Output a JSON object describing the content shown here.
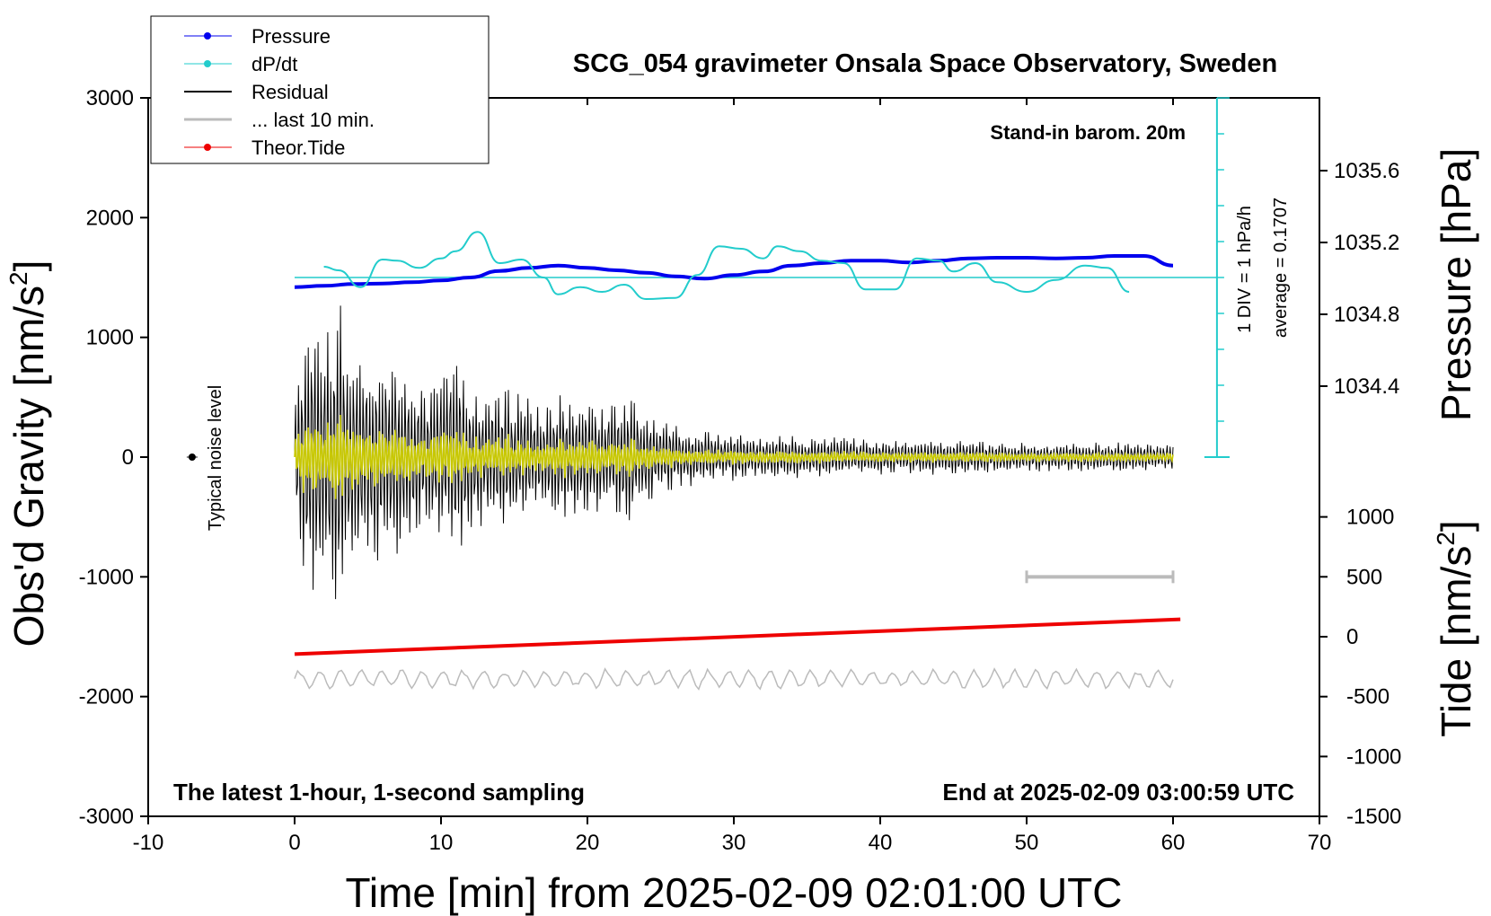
{
  "chart_data": {
    "type": "line",
    "title": "SCG_054 gravimeter Onsala Space Observatory, Sweden",
    "xlabel": "Time [min] from 2025-02-09 02:01:00 UTC",
    "ylabel_left": "Obs'd Gravity [nm/s",
    "ylabel_left_sup": "2",
    "ylabel_left_end": "]",
    "ylabel_right_top": "Pressure [hPa]",
    "ylabel_right_bottom": "Tide [nm/s",
    "ylabel_right_bottom_sup": "2",
    "ylabel_right_bottom_end": "]",
    "xlim": [
      -10,
      70
    ],
    "ylim": [
      -3000,
      3000
    ],
    "x_ticks": [
      "-10",
      "0",
      "10",
      "20",
      "30",
      "40",
      "50",
      "60",
      "70"
    ],
    "y_ticks": [
      "-3000",
      "-2000",
      "-1000",
      "0",
      "1000",
      "2000",
      "3000"
    ],
    "pressure_ticks": [
      "1034.4",
      "1034.8",
      "1035.2",
      "1035.6"
    ],
    "tide_ticks": [
      "-1500",
      "-1000",
      "-500",
      "0",
      "500",
      "1000"
    ],
    "annotations": {
      "stand_in": "Stand-in barom. 20m",
      "div_label": "1 DIV = 1 hPa/h",
      "average_label": "average = 0.1707",
      "noise_label": "Typical noise level",
      "bottom_left": "The latest 1-hour, 1-second sampling",
      "bottom_right": "End at 2025-02-09 03:00:59 UTC"
    },
    "legend": [
      {
        "name": "Pressure",
        "color": "#0000ee",
        "marker": true
      },
      {
        "name": "dP/dt",
        "color": "#22cccc",
        "marker": true
      },
      {
        "name": "Residual",
        "color": "#000000",
        "marker": false
      },
      {
        "name": "... last 10 min.",
        "color": "#bbbbbb",
        "marker": false
      },
      {
        "name": "Theor.Tide",
        "color": "#ee0000",
        "marker": true
      }
    ],
    "series": [
      {
        "name": "Pressure",
        "color": "#0000ee",
        "x": [
          0,
          2,
          4,
          6,
          8,
          10,
          12,
          14,
          16,
          18,
          20,
          22,
          24,
          26,
          28,
          30,
          32,
          34,
          36,
          38,
          40,
          42,
          44,
          46,
          48,
          50,
          52,
          54,
          56,
          58,
          60
        ],
        "y": [
          1420,
          1430,
          1445,
          1450,
          1460,
          1475,
          1500,
          1555,
          1580,
          1600,
          1580,
          1560,
          1540,
          1510,
          1490,
          1520,
          1550,
          1600,
          1620,
          1640,
          1640,
          1625,
          1640,
          1660,
          1665,
          1665,
          1660,
          1665,
          1680,
          1680,
          1600
        ]
      },
      {
        "name": "dP/dt",
        "color": "#22cccc",
        "x": [
          2,
          3,
          4.5,
          6,
          7,
          8.5,
          10,
          11,
          12.5,
          14,
          15.5,
          17,
          18,
          19.5,
          21,
          22.5,
          24,
          26,
          27.5,
          29,
          30.5,
          32,
          33,
          34.5,
          36,
          37.5,
          39,
          41,
          42.5,
          44,
          45,
          46.5,
          48,
          50,
          52,
          54,
          55.5,
          57
        ],
        "y": [
          1590,
          1560,
          1420,
          1650,
          1640,
          1580,
          1660,
          1720,
          1880,
          1620,
          1650,
          1500,
          1360,
          1420,
          1380,
          1440,
          1320,
          1330,
          1520,
          1760,
          1740,
          1660,
          1760,
          1720,
          1640,
          1620,
          1400,
          1400,
          1660,
          1640,
          1550,
          1620,
          1460,
          1380,
          1480,
          1600,
          1580,
          1380
        ]
      },
      {
        "name": "Theor.Tide",
        "color": "#ee0000",
        "x": [
          0,
          60.5
        ],
        "y": [
          -1645,
          -1355
        ]
      }
    ],
    "residual": {
      "start": 0,
      "end": 60,
      "envelope_x": [
        0,
        1,
        2,
        3,
        4,
        5,
        6,
        7,
        8,
        9,
        10,
        11,
        12,
        13,
        14,
        15,
        16,
        17,
        18,
        19,
        20,
        21,
        22,
        23,
        24,
        25,
        27,
        30,
        35,
        40,
        45,
        50,
        55,
        60
      ],
      "envelope_y": [
        500,
        1300,
        1100,
        1350,
        1000,
        900,
        950,
        850,
        700,
        650,
        750,
        850,
        700,
        600,
        650,
        550,
        500,
        450,
        550,
        500,
        480,
        450,
        500,
        550,
        450,
        350,
        250,
        200,
        180,
        150,
        150,
        120,
        130,
        120
      ],
      "last10_x": [
        50,
        60
      ],
      "last10_y": -1000
    },
    "grey_trace_level": -1850,
    "noise_bar": {
      "x": -7,
      "y": 0
    }
  }
}
